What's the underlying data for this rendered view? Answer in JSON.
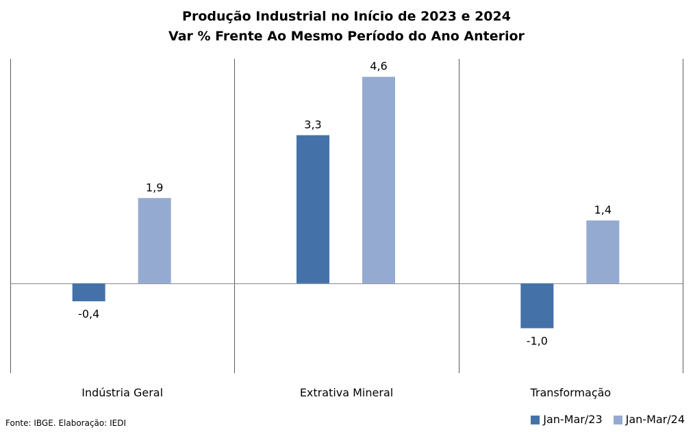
{
  "colors": {
    "series_2023": "#4472a8",
    "series_2024": "#95aad1",
    "axis": "#808080",
    "divider": "#595959"
  },
  "source": "Fonte: IBGE. Elaboração: IEDI",
  "chart_data": {
    "type": "bar",
    "title": "Produção Industrial no Início de 2023 e 2024",
    "subtitle": "Var % Frente Ao Mesmo Período do Ano Anterior",
    "categories": [
      "Indústria Geral",
      "Extrativa Mineral",
      "Transformação"
    ],
    "series": [
      {
        "name": "Jan-Mar/23",
        "values": [
          -0.4,
          3.3,
          -1.0
        ],
        "labels": [
          "-0,4",
          "3,3",
          "-1,0"
        ],
        "color": "#4472a8"
      },
      {
        "name": "Jan-Mar/24",
        "values": [
          1.9,
          4.6,
          1.4
        ],
        "labels": [
          "1,9",
          "4,6",
          "1,4"
        ],
        "color": "#95aad1"
      }
    ],
    "ylim": [
      -2.0,
      5.0
    ],
    "grid": false,
    "legend": "bottom-right"
  }
}
